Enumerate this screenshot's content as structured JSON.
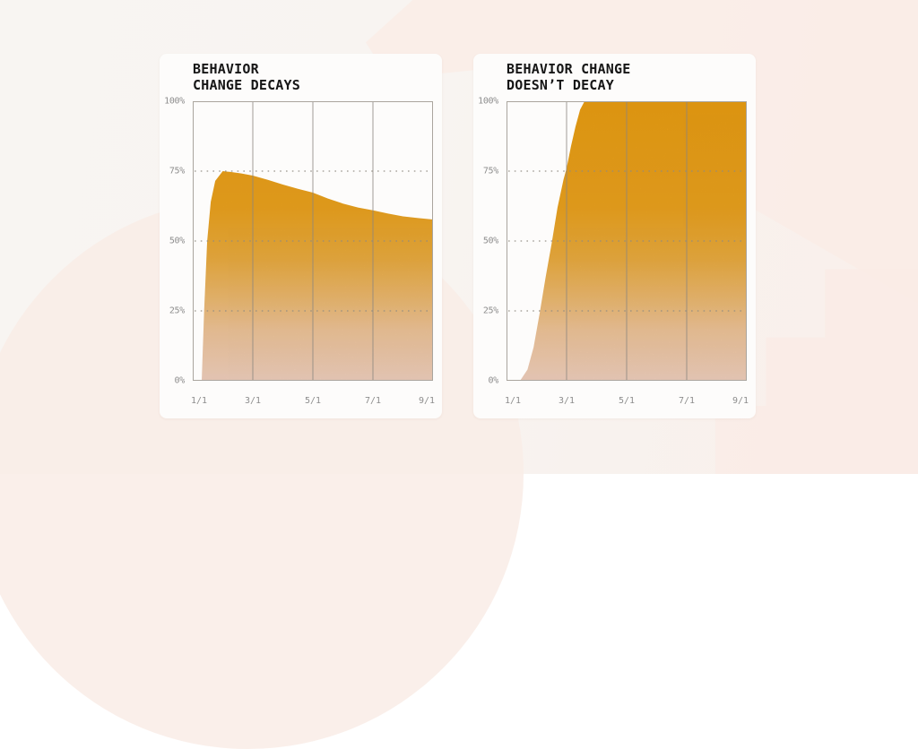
{
  "theme": {
    "page_background": "#F8F4F1",
    "background_blob_pink": "#FAECE6",
    "card_background": "#FDFCFB",
    "title_color": "#161616",
    "axis_label_color": "#8D8D8D",
    "gridline_color": "#8B867F",
    "area_orange_top": "#F5A513",
    "area_pink_bottom": "#FCDAC7",
    "area_gradient": [
      [
        0,
        "#F5A513"
      ],
      [
        0.38,
        "#F6AA1F"
      ],
      [
        0.56,
        "#F7B441"
      ],
      [
        0.7,
        "#F9C273"
      ],
      [
        0.82,
        "#FBCEA0"
      ],
      [
        1,
        "#FCDAC7"
      ]
    ]
  },
  "axes": {
    "y": [
      "100%",
      "75%",
      "50%",
      "25%",
      "0%"
    ],
    "x": [
      "1/1",
      "3/1",
      "5/1",
      "7/1",
      "9/1"
    ]
  },
  "charts": [
    {
      "title_lines": [
        "BEHAVIOR",
        "CHANGE DECAYS"
      ]
    },
    {
      "title_lines": [
        "BEHAVIOR CHANGE",
        "DOESN’T DECAY"
      ]
    }
  ],
  "chart_data": [
    {
      "type": "area",
      "title": "BEHAVIOR CHANGE DECAYS",
      "xlabel": "",
      "ylabel": "",
      "x_tick_labels": [
        "1/1",
        "3/1",
        "5/1",
        "7/1",
        "9/1"
      ],
      "y_tick_labels": [
        "0%",
        "25%",
        "50%",
        "75%",
        "100%"
      ],
      "x_range": [
        0,
        8
      ],
      "ylim": [
        0,
        100
      ],
      "grid": "vertical solid lines at x ticks; dotted horizontal lines at 25/50/75",
      "legend": "none",
      "values_at_x_ticks": {
        "1/1": 0,
        "3/1": 73,
        "5/1": 67,
        "7/1": 61,
        "9/1": 58
      },
      "peak": {
        "x_months_after_start": 1,
        "value_pct": 75
      },
      "points": [
        [
          0.3,
          0
        ],
        [
          0.38,
          25
        ],
        [
          0.48,
          50
        ],
        [
          0.6,
          64
        ],
        [
          0.75,
          71.5
        ],
        [
          1.0,
          75
        ],
        [
          1.25,
          74.7
        ],
        [
          1.6,
          74.2
        ],
        [
          2.0,
          73.4
        ],
        [
          2.5,
          71.9
        ],
        [
          3.0,
          70.2
        ],
        [
          3.5,
          68.7
        ],
        [
          4.0,
          67.3
        ],
        [
          4.5,
          65.2
        ],
        [
          5.0,
          63.4
        ],
        [
          5.5,
          62.0
        ],
        [
          6.0,
          61.0
        ],
        [
          6.5,
          59.8
        ],
        [
          7.0,
          58.8
        ],
        [
          7.5,
          58.2
        ],
        [
          8.0,
          57.7
        ]
      ]
    },
    {
      "type": "area",
      "title": "BEHAVIOR CHANGE DOESN'T DECAY",
      "xlabel": "",
      "ylabel": "",
      "x_tick_labels": [
        "1/1",
        "3/1",
        "5/1",
        "7/1",
        "9/1"
      ],
      "y_tick_labels": [
        "0%",
        "25%",
        "50%",
        "75%",
        "100%"
      ],
      "x_range": [
        0,
        8
      ],
      "ylim": [
        0,
        100
      ],
      "grid": "vertical solid lines at x ticks; dotted horizontal lines at 25/50/75",
      "legend": "none",
      "values_at_x_ticks": {
        "1/1": 0,
        "3/1": 76,
        "5/1": 100,
        "7/1": 100,
        "9/1": 100
      },
      "reaches_100_pct_at_months_after_start": 2.6,
      "points": [
        [
          0.45,
          0
        ],
        [
          0.7,
          4
        ],
        [
          0.9,
          12
        ],
        [
          1.1,
          24
        ],
        [
          1.3,
          37
        ],
        [
          1.5,
          49
        ],
        [
          1.7,
          62
        ],
        [
          1.9,
          72
        ],
        [
          2.0,
          76
        ],
        [
          2.15,
          84
        ],
        [
          2.3,
          91
        ],
        [
          2.45,
          97
        ],
        [
          2.6,
          100
        ],
        [
          8.0,
          100
        ]
      ]
    }
  ]
}
